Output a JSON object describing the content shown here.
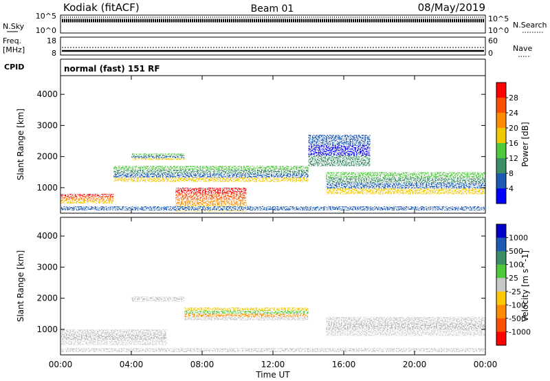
{
  "header": {
    "station": "Kodiak (fitACF)",
    "beam": "Beam 01",
    "date": "08/May/2019"
  },
  "strips": {
    "nsky_label": "N.Sky",
    "nsky_ticks": [
      "10^5",
      "10^0"
    ],
    "nsearch_label": "N.Search",
    "nsearch_ticks": [
      "10^5",
      "10^0"
    ],
    "freq_label": "Freq.",
    "freq_unit": "[MHz]",
    "freq_ticks": [
      "18",
      "8"
    ],
    "nave_label": "Nave",
    "nave_ticks": [
      "60",
      "0"
    ],
    "cpid_label": "CPID",
    "cpid_value": "normal (fast) 151 RF"
  },
  "chart_data": [
    {
      "type": "heatmap",
      "name": "Power",
      "ylabel": "Slant Range [km]",
      "y_ticks": [
        1000,
        2000,
        3000,
        4000
      ],
      "x_ticks": [
        "00:00",
        "04:00",
        "08:00",
        "12:00",
        "16:00",
        "20:00",
        "00:00"
      ],
      "colorbar_label": "Power [dB]",
      "colorbar_ticks": [
        "4",
        "8",
        "12",
        "16",
        "20",
        "24",
        "28"
      ],
      "colorbar_colors": [
        "#0000ff",
        "#1e5ab4",
        "#3c8c64",
        "#50c83c",
        "#f0c800",
        "#ff8c00",
        "#ff5000",
        "#ff0000"
      ],
      "regions": [
        {
          "x": [
            0.0,
            3.0
          ],
          "y": [
            500,
            800
          ],
          "level": "high"
        },
        {
          "x": [
            3.0,
            14.0
          ],
          "y": [
            1200,
            1700
          ],
          "level": "mid"
        },
        {
          "x": [
            6.5,
            10.5
          ],
          "y": [
            250,
            1000
          ],
          "level": "high"
        },
        {
          "x": [
            4.0,
            7.0
          ],
          "y": [
            1900,
            2100
          ],
          "level": "mid"
        },
        {
          "x": [
            15.0,
            24.0
          ],
          "y": [
            800,
            1500
          ],
          "level": "mid"
        },
        {
          "x": [
            14.0,
            17.5
          ],
          "y": [
            1700,
            2700
          ],
          "level": "low"
        }
      ]
    },
    {
      "type": "heatmap",
      "name": "Velocity",
      "ylabel": "Slant Range [km]",
      "y_ticks": [
        1000,
        2000,
        3000,
        4000
      ],
      "x_ticks": [
        "00:00",
        "04:00",
        "08:00",
        "12:00",
        "16:00",
        "20:00",
        "00:00"
      ],
      "xlabel": "Time UT",
      "colorbar_label": "Velocity [m s^-1]",
      "colorbar_ticks": [
        "1000",
        "500",
        "100",
        "25",
        "-25",
        "-100",
        "-500",
        "-1000"
      ],
      "colorbar_colors": [
        "#0000c8",
        "#1e5ab4",
        "#3c8c64",
        "#50c83c",
        "#c8c8c8",
        "#ffc800",
        "#ff8c00",
        "#ff5000",
        "#ff0000"
      ],
      "regions": [
        {
          "x": [
            0.0,
            6.0
          ],
          "y": [
            500,
            1000
          ],
          "level": "ground"
        },
        {
          "x": [
            7.0,
            14.0
          ],
          "y": [
            1300,
            1700
          ],
          "level": "mixed"
        },
        {
          "x": [
            4.0,
            7.0
          ],
          "y": [
            1900,
            2050
          ],
          "level": "ground"
        },
        {
          "x": [
            15.0,
            24.0
          ],
          "y": [
            800,
            1400
          ],
          "level": "ground"
        }
      ]
    }
  ]
}
